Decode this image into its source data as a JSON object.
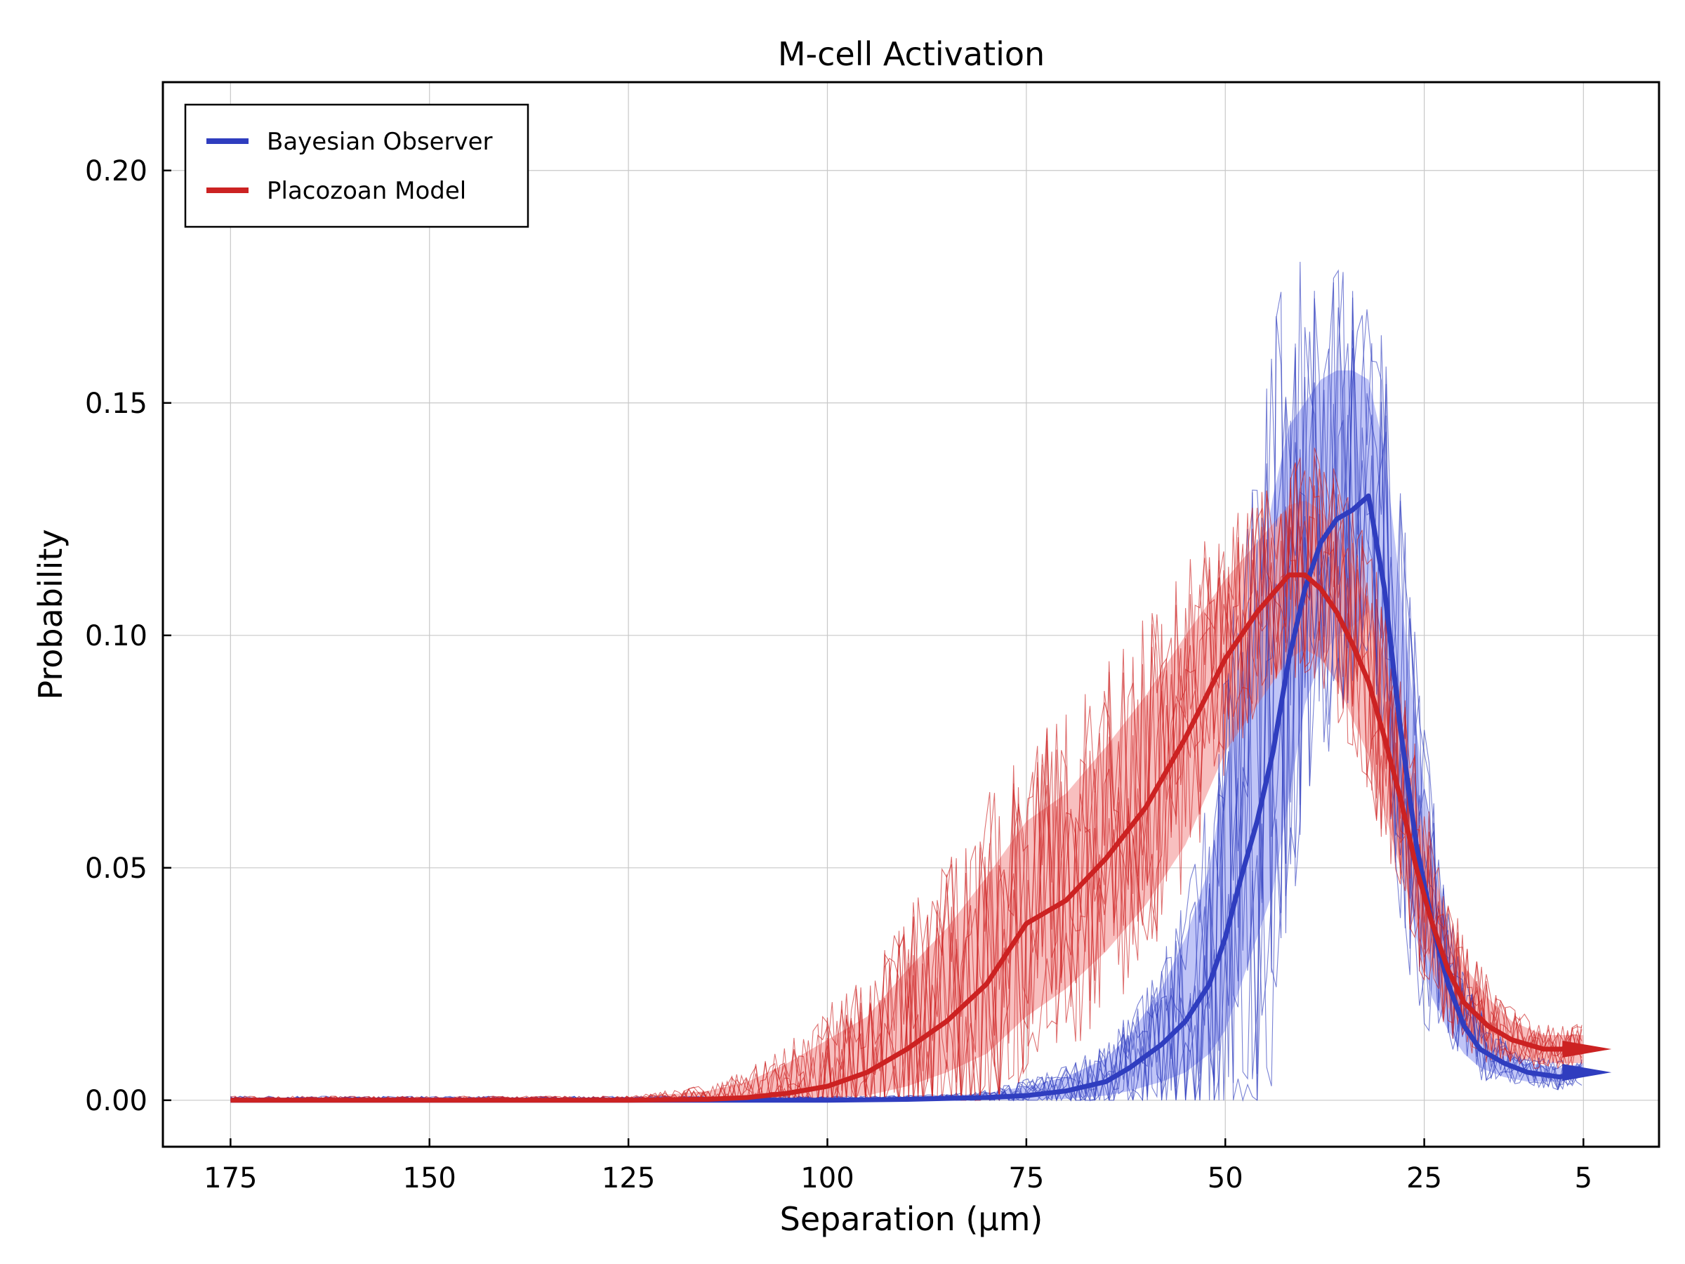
{
  "chart_data": {
    "type": "line",
    "title": "M-cell Activation",
    "xlabel": "Separation (µm)",
    "ylabel": "Probability",
    "x_reversed": true,
    "xlim": [
      183.5,
      -4.5
    ],
    "ylim": [
      -0.01,
      0.219
    ],
    "grid": true,
    "legend_position": "top-left",
    "x_ticks": [
      175,
      150,
      125,
      100,
      75,
      50,
      25,
      5
    ],
    "x_tick_labels": [
      "175",
      "150",
      "125",
      "100",
      "75",
      "50",
      "25",
      "5"
    ],
    "y_ticks": [
      0.0,
      0.05,
      0.1,
      0.15,
      0.2
    ],
    "y_tick_labels": [
      "0.00",
      "0.05",
      "0.10",
      "0.15",
      "0.20"
    ],
    "series": [
      {
        "name": "Bayesian Observer",
        "color": "#2f3dbf",
        "band_color": "#8c95f0",
        "x": [
          175,
          150,
          125,
          100,
          90,
          80,
          75,
          70,
          65,
          62,
          58,
          55,
          52,
          50,
          48,
          46,
          44,
          42,
          40,
          38,
          36,
          34,
          32,
          30,
          28,
          26,
          24,
          22,
          20,
          18,
          15,
          12,
          8,
          5
        ],
        "mean": [
          0.0,
          0.0,
          0.0,
          0.0,
          0.0002,
          0.0006,
          0.001,
          0.002,
          0.004,
          0.007,
          0.012,
          0.017,
          0.025,
          0.035,
          0.048,
          0.06,
          0.075,
          0.095,
          0.11,
          0.12,
          0.125,
          0.127,
          0.13,
          0.11,
          0.08,
          0.055,
          0.038,
          0.025,
          0.016,
          0.011,
          0.008,
          0.006,
          0.005,
          0.006
        ],
        "band_upper": [
          0.0,
          0.0,
          0.0,
          0.0,
          0.0005,
          0.0015,
          0.003,
          0.005,
          0.009,
          0.014,
          0.024,
          0.035,
          0.05,
          0.07,
          0.09,
          0.11,
          0.13,
          0.145,
          0.15,
          0.155,
          0.157,
          0.157,
          0.155,
          0.14,
          0.11,
          0.08,
          0.055,
          0.035,
          0.022,
          0.016,
          0.011,
          0.008,
          0.007,
          0.008
        ],
        "band_lower": [
          0.0,
          0.0,
          0.0,
          0.0,
          0.0,
          0.0,
          0.0,
          0.0003,
          0.001,
          0.002,
          0.004,
          0.006,
          0.01,
          0.015,
          0.025,
          0.035,
          0.045,
          0.065,
          0.085,
          0.095,
          0.1,
          0.102,
          0.105,
          0.085,
          0.055,
          0.035,
          0.022,
          0.015,
          0.01,
          0.007,
          0.005,
          0.004,
          0.004,
          0.005
        ]
      },
      {
        "name": "Placozoan Model",
        "color": "#cc2222",
        "band_color": "#f28a8a",
        "x": [
          175,
          150,
          125,
          115,
          110,
          105,
          100,
          95,
          90,
          85,
          80,
          75,
          70,
          65,
          60,
          55,
          50,
          46,
          42,
          40,
          38,
          36,
          34,
          32,
          30,
          28,
          26,
          24,
          22,
          20,
          17,
          14,
          10,
          5
        ],
        "mean": [
          0.0,
          0.0,
          0.0,
          0.0002,
          0.0006,
          0.0015,
          0.003,
          0.006,
          0.011,
          0.017,
          0.025,
          0.038,
          0.043,
          0.052,
          0.063,
          0.078,
          0.095,
          0.105,
          0.113,
          0.113,
          0.11,
          0.105,
          0.098,
          0.09,
          0.078,
          0.065,
          0.05,
          0.038,
          0.028,
          0.021,
          0.016,
          0.013,
          0.011,
          0.011
        ],
        "band_upper": [
          0.0,
          0.0,
          0.0005,
          0.002,
          0.004,
          0.008,
          0.013,
          0.018,
          0.028,
          0.037,
          0.048,
          0.06,
          0.066,
          0.076,
          0.087,
          0.1,
          0.112,
          0.12,
          0.128,
          0.129,
          0.127,
          0.122,
          0.115,
          0.107,
          0.095,
          0.08,
          0.065,
          0.05,
          0.038,
          0.029,
          0.022,
          0.017,
          0.014,
          0.014
        ],
        "band_lower": [
          0.0,
          0.0,
          0.0,
          0.0,
          0.0,
          0.0,
          0.0005,
          0.001,
          0.003,
          0.006,
          0.01,
          0.018,
          0.024,
          0.032,
          0.042,
          0.055,
          0.075,
          0.085,
          0.095,
          0.097,
          0.095,
          0.09,
          0.082,
          0.074,
          0.062,
          0.05,
          0.038,
          0.028,
          0.02,
          0.015,
          0.011,
          0.009,
          0.008,
          0.008
        ]
      }
    ]
  }
}
